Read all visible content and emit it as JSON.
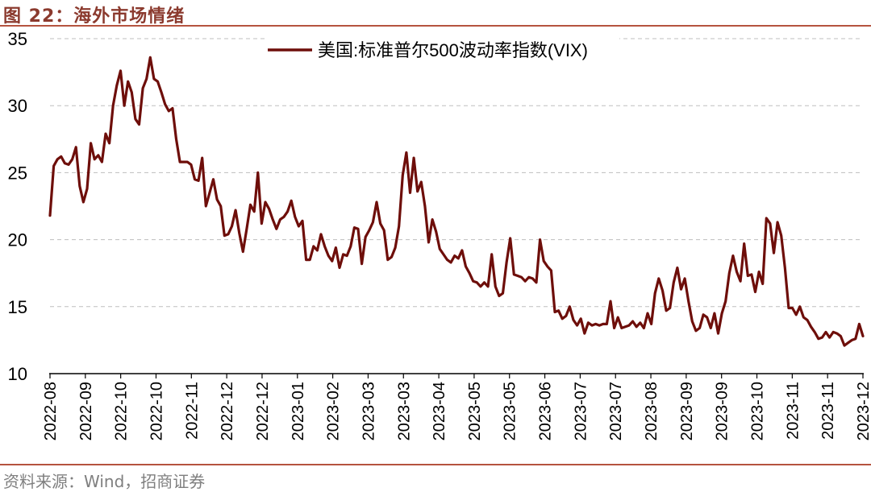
{
  "header": {
    "title": "图 22：海外市场情绪"
  },
  "footer": {
    "source": "资料来源：Wind，招商证券"
  },
  "colors": {
    "line": "#6E0E0A",
    "accent": "#B5533F",
    "grid": "#BFBFBF"
  },
  "chart_data": {
    "type": "line",
    "title": "",
    "xlabel": "",
    "ylabel": "",
    "ylim": [
      10,
      35
    ],
    "yticks": [
      10,
      15,
      20,
      25,
      30,
      35
    ],
    "grid": "horizontal-dashed",
    "legend_position": "top-center",
    "xticks": [
      "2022-08",
      "2022-09",
      "2022-10",
      "2022-10",
      "2022-11",
      "2022-12",
      "2022-12",
      "2023-01",
      "2023-02",
      "2023-03",
      "2023-03",
      "2023-04",
      "2023-05",
      "2023-05",
      "2023-06",
      "2023-07",
      "2023-07",
      "2023-08",
      "2023-09",
      "2023-09",
      "2023-10",
      "2023-11",
      "2023-11",
      "2023-12"
    ],
    "series": [
      {
        "name": "美国:标准普尔500波动率指数(VIX)",
        "values": [
          21.8,
          25.5,
          26.0,
          26.2,
          25.7,
          25.6,
          26.0,
          26.9,
          24.0,
          22.8,
          23.8,
          27.2,
          26.0,
          26.3,
          25.8,
          27.9,
          27.2,
          30.0,
          31.5,
          32.6,
          30.0,
          31.8,
          31.0,
          29.0,
          28.6,
          31.3,
          32.0,
          33.6,
          32.0,
          31.8,
          31.0,
          30.1,
          29.6,
          29.8,
          27.5,
          25.8,
          25.8,
          25.8,
          25.6,
          24.5,
          24.4,
          26.1,
          22.5,
          23.5,
          24.5,
          23.0,
          22.5,
          20.3,
          20.4,
          21.0,
          22.2,
          20.5,
          19.1,
          20.8,
          22.6,
          22.1,
          25.0,
          21.2,
          22.8,
          22.3,
          21.5,
          20.8,
          21.5,
          21.7,
          22.1,
          22.9,
          21.7,
          21.0,
          21.4,
          18.5,
          18.5,
          19.5,
          19.2,
          20.4,
          19.5,
          18.8,
          18.4,
          19.4,
          17.9,
          18.9,
          18.8,
          19.5,
          20.9,
          20.8,
          18.2,
          20.2,
          20.7,
          21.3,
          22.8,
          21.2,
          20.7,
          18.5,
          18.7,
          19.4,
          21.0,
          24.8,
          26.5,
          23.5,
          26.1,
          23.6,
          24.3,
          22.5,
          19.8,
          21.5,
          20.6,
          19.3,
          18.9,
          18.5,
          18.3,
          18.8,
          18.6,
          19.2,
          18.0,
          17.5,
          16.9,
          16.8,
          16.5,
          16.8,
          16.5,
          18.9,
          16.5,
          15.8,
          16.0,
          18.3,
          20.1,
          17.4,
          17.3,
          17.2,
          16.9,
          17.2,
          17.1,
          16.8,
          20.0,
          18.4,
          18.0,
          17.7,
          14.6,
          14.7,
          14.1,
          14.3,
          15.0,
          14.0,
          13.6,
          14.1,
          13.0,
          13.8,
          13.6,
          13.7,
          13.6,
          13.7,
          13.7,
          15.4,
          13.4,
          14.2,
          13.4,
          13.5,
          13.6,
          13.9,
          13.5,
          13.8,
          13.4,
          14.5,
          13.7,
          16.0,
          17.1,
          16.2,
          14.7,
          14.9,
          16.8,
          17.9,
          16.3,
          17.1,
          15.4,
          13.9,
          13.2,
          13.4,
          14.4,
          14.2,
          13.4,
          14.5,
          13.0,
          14.5,
          15.4,
          17.5,
          18.8,
          17.6,
          16.9,
          19.7,
          17.3,
          17.4,
          16.1,
          17.6,
          16.7,
          21.6,
          21.2,
          19.0,
          21.3,
          20.3,
          17.9,
          14.9,
          14.9,
          14.4,
          15.0,
          14.2,
          14.0,
          13.5,
          13.1,
          12.6,
          12.7,
          13.1,
          12.7,
          13.1,
          13.0,
          12.8,
          12.1,
          12.3,
          12.5,
          12.6,
          13.7,
          12.8
        ]
      }
    ]
  }
}
